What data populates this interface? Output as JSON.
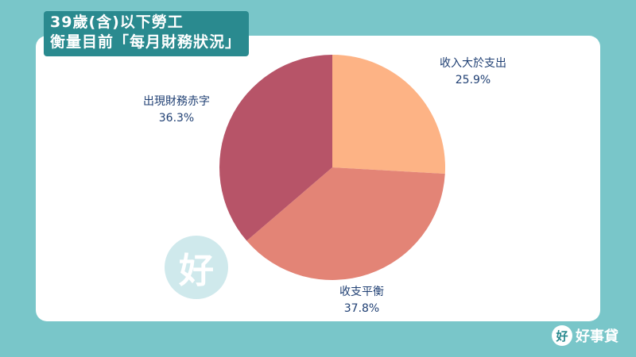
{
  "title": {
    "line1": "39歲(含)以下勞工",
    "line2": "衡量目前「每月財務狀況」"
  },
  "brand": {
    "icon_glyph": "好",
    "name": "好事貸"
  },
  "watermark": {
    "glyph": "好"
  },
  "chart_data": {
    "type": "pie",
    "slices": [
      {
        "label": "收入大於支出",
        "value": 25.9,
        "display": "25.9%",
        "color": "#fdb385"
      },
      {
        "label": "收支平衡",
        "value": 37.8,
        "display": "37.8%",
        "color": "#e38476"
      },
      {
        "label": "出現財務赤字",
        "value": 36.3,
        "display": "36.3%",
        "color": "#b75468"
      }
    ],
    "start_angle": "12 o'clock",
    "direction": "clockwise",
    "label_color": "#1f3f73"
  }
}
